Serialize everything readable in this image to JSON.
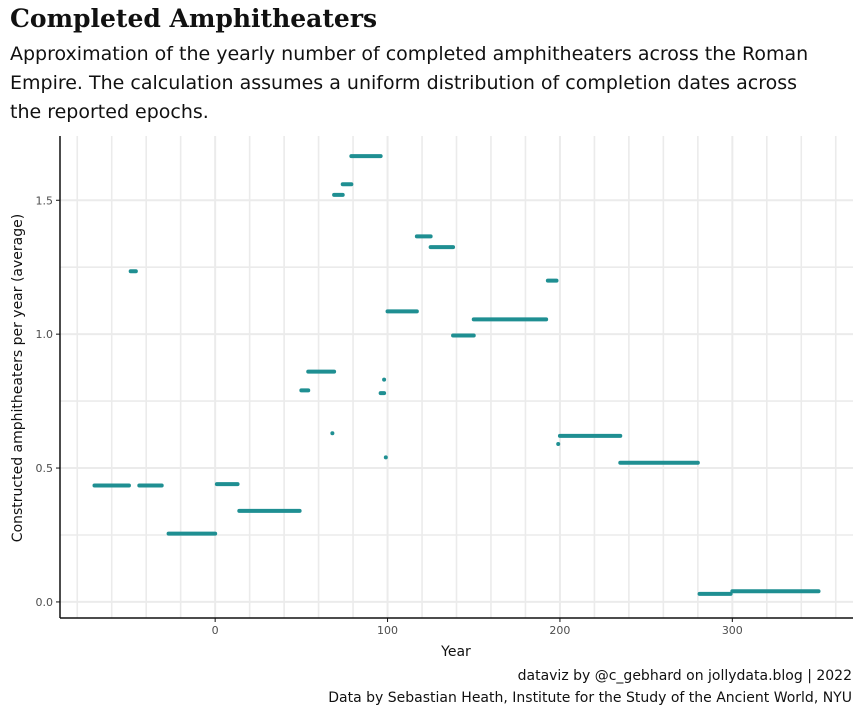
{
  "header": {
    "title": "Completed Amphitheaters",
    "subtitle": "Approximation of the yearly number of completed amphitheaters across the Roman Empire. The calculation assumes a uniform distribution of completion dates across the reported epochs."
  },
  "footer": {
    "credit": "dataviz by @c_gebhard on jollydata.blog | 2022",
    "source": "Data by Sebastian Heath, Institute for the Study of the Ancient World, NYU"
  },
  "colors": {
    "series": "#1f8f92",
    "grid": "#ebebeb",
    "axis": "#111111"
  },
  "chart_data": {
    "type": "line",
    "xlabel": "Year",
    "ylabel": "Constructed amphitheaters per year (average)",
    "xlim": [
      -90,
      370
    ],
    "ylim": [
      -0.06,
      1.74
    ],
    "x_ticks": [
      0,
      100,
      200,
      300
    ],
    "y_ticks": [
      0.0,
      0.5,
      1.0,
      1.5
    ],
    "y_tick_labels": [
      "0.0",
      "0.5",
      "1.0",
      "1.5"
    ],
    "x_tick_labels": [
      "0",
      "100",
      "200",
      "300"
    ],
    "segments": [
      {
        "x0": -70,
        "x1": -50,
        "y": 0.435
      },
      {
        "x0": -49,
        "x1": -46,
        "y": 1.235
      },
      {
        "x0": -44,
        "x1": -31,
        "y": 0.435
      },
      {
        "x0": -27,
        "x1": 0,
        "y": 0.255
      },
      {
        "x0": 1,
        "x1": 13,
        "y": 0.44
      },
      {
        "x0": 14,
        "x1": 49,
        "y": 0.34
      },
      {
        "x0": 50,
        "x1": 54,
        "y": 0.79
      },
      {
        "x0": 54,
        "x1": 69,
        "y": 0.86
      },
      {
        "x0": 68,
        "x1": 68,
        "y": 0.63
      },
      {
        "x0": 69,
        "x1": 74,
        "y": 1.52
      },
      {
        "x0": 74,
        "x1": 79,
        "y": 1.56
      },
      {
        "x0": 79,
        "x1": 96,
        "y": 1.665
      },
      {
        "x0": 96,
        "x1": 98,
        "y": 0.78
      },
      {
        "x0": 98,
        "x1": 98,
        "y": 0.83
      },
      {
        "x0": 99,
        "x1": 99,
        "y": 0.54
      },
      {
        "x0": 100,
        "x1": 117,
        "y": 1.085
      },
      {
        "x0": 117,
        "x1": 125,
        "y": 1.365
      },
      {
        "x0": 125,
        "x1": 138,
        "y": 1.325
      },
      {
        "x0": 138,
        "x1": 150,
        "y": 0.995
      },
      {
        "x0": 150,
        "x1": 192,
        "y": 1.055
      },
      {
        "x0": 193,
        "x1": 198,
        "y": 1.2
      },
      {
        "x0": 199,
        "x1": 199,
        "y": 0.59
      },
      {
        "x0": 200,
        "x1": 235,
        "y": 0.62
      },
      {
        "x0": 235,
        "x1": 280,
        "y": 0.52
      },
      {
        "x0": 281,
        "x1": 299,
        "y": 0.03
      },
      {
        "x0": 300,
        "x1": 350,
        "y": 0.04
      }
    ]
  }
}
